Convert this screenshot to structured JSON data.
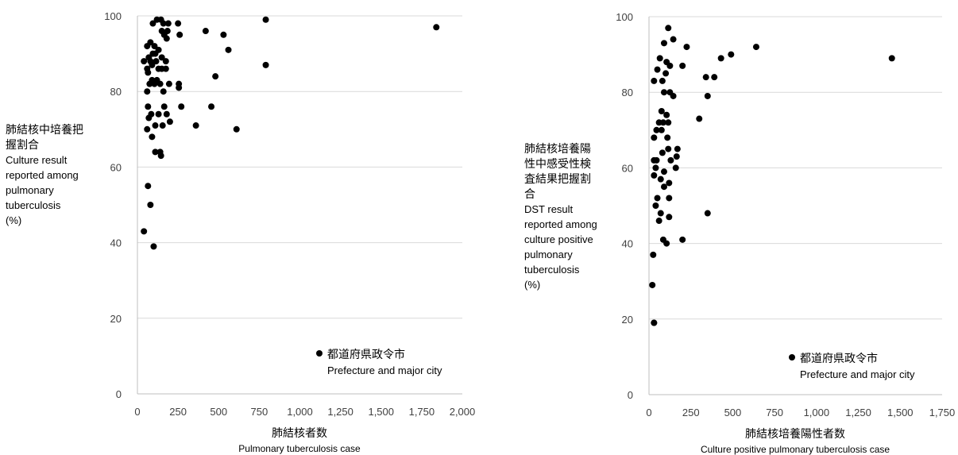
{
  "chart_data": [
    {
      "type": "scatter",
      "ylabel_lines": [
        "肺結核中培養把",
        "握割合",
        "Culture result",
        "reported among",
        "pulmonary",
        "tuberculosis",
        "(%)"
      ],
      "xlabel": "肺結核者数",
      "xlabel_en": "Pulmonary tuberculosis case",
      "legend": {
        "label": "都道府県政令市",
        "label_en": "Prefecture and major city",
        "position": "bottom-right"
      },
      "xlim": [
        0,
        2000
      ],
      "ylim": [
        0,
        100
      ],
      "xticks": [
        0,
        250,
        500,
        750,
        1000,
        1250,
        1500,
        1750,
        2000
      ],
      "xtick_labels": [
        "0",
        "250",
        "500",
        "750",
        "1,000",
        "1,250",
        "1,500",
        "1,750",
        "2,000"
      ],
      "yticks": [
        0,
        20,
        40,
        60,
        80,
        100
      ],
      "grid": "horizontal",
      "series": [
        {
          "points": [
            [
              120,
              99
            ],
            [
              145,
              99
            ],
            [
              790,
              99
            ],
            [
              95,
              98
            ],
            [
              160,
              98
            ],
            [
              190,
              98
            ],
            [
              250,
              98
            ],
            [
              1840,
              97
            ],
            [
              150,
              96
            ],
            [
              185,
              96
            ],
            [
              420,
              96
            ],
            [
              260,
              95
            ],
            [
              530,
              95
            ],
            [
              165,
              95
            ],
            [
              180,
              94
            ],
            [
              80,
              93
            ],
            [
              105,
              92
            ],
            [
              60,
              92
            ],
            [
              560,
              91
            ],
            [
              130,
              91
            ],
            [
              110,
              90
            ],
            [
              95,
              90
            ],
            [
              70,
              89
            ],
            [
              150,
              89
            ],
            [
              40,
              88
            ],
            [
              80,
              88
            ],
            [
              115,
              88
            ],
            [
              175,
              88
            ],
            [
              90,
              87
            ],
            [
              790,
              87
            ],
            [
              60,
              86
            ],
            [
              130,
              86
            ],
            [
              150,
              86
            ],
            [
              175,
              86
            ],
            [
              65,
              85
            ],
            [
              480,
              84
            ],
            [
              120,
              83
            ],
            [
              90,
              83
            ],
            [
              75,
              82
            ],
            [
              140,
              82
            ],
            [
              195,
              82
            ],
            [
              255,
              82
            ],
            [
              105,
              82
            ],
            [
              255,
              81
            ],
            [
              60,
              80
            ],
            [
              160,
              80
            ],
            [
              65,
              76
            ],
            [
              165,
              76
            ],
            [
              270,
              76
            ],
            [
              455,
              76
            ],
            [
              85,
              74
            ],
            [
              130,
              74
            ],
            [
              180,
              74
            ],
            [
              70,
              73
            ],
            [
              200,
              72
            ],
            [
              110,
              71
            ],
            [
              155,
              71
            ],
            [
              360,
              71
            ],
            [
              60,
              70
            ],
            [
              610,
              70
            ],
            [
              90,
              68
            ],
            [
              110,
              64
            ],
            [
              140,
              64
            ],
            [
              145,
              63
            ],
            [
              65,
              55
            ],
            [
              80,
              50
            ],
            [
              40,
              43
            ],
            [
              100,
              39
            ]
          ]
        }
      ]
    },
    {
      "type": "scatter",
      "ylabel_lines": [
        "肺結核培養陽",
        "性中感受性検",
        "査結果把握割",
        "合",
        "DST result",
        "reported among",
        "culture positive",
        "pulmonary",
        "tuberculosis",
        "(%)"
      ],
      "xlabel": "肺結核培養陽性者数",
      "xlabel_en": "Culture positive pulmonary tuberculosis case",
      "legend": {
        "label": "都道府県政令市",
        "label_en": "Prefecture and major city",
        "position": "bottom-right"
      },
      "xlim": [
        0,
        1750
      ],
      "ylim": [
        0,
        100
      ],
      "xticks": [
        0,
        250,
        500,
        750,
        1000,
        1250,
        1500,
        1750
      ],
      "xtick_labels": [
        "0",
        "250",
        "500",
        "750",
        "1,000",
        "1,250",
        "1,500",
        "1,750"
      ],
      "yticks": [
        0,
        20,
        40,
        60,
        80,
        100
      ],
      "grid": "horizontal",
      "series": [
        {
          "points": [
            [
              115,
              97
            ],
            [
              145,
              94
            ],
            [
              90,
              93
            ],
            [
              225,
              92
            ],
            [
              640,
              92
            ],
            [
              490,
              90
            ],
            [
              430,
              89
            ],
            [
              1450,
              89
            ],
            [
              65,
              89
            ],
            [
              105,
              88
            ],
            [
              200,
              87
            ],
            [
              125,
              87
            ],
            [
              340,
              84
            ],
            [
              390,
              84
            ],
            [
              50,
              86
            ],
            [
              100,
              85
            ],
            [
              30,
              83
            ],
            [
              80,
              83
            ],
            [
              90,
              80
            ],
            [
              125,
              80
            ],
            [
              145,
              79
            ],
            [
              350,
              79
            ],
            [
              75,
              75
            ],
            [
              105,
              74
            ],
            [
              60,
              72
            ],
            [
              85,
              72
            ],
            [
              115,
              72
            ],
            [
              300,
              73
            ],
            [
              45,
              70
            ],
            [
              75,
              70
            ],
            [
              110,
              68
            ],
            [
              30,
              68
            ],
            [
              115,
              65
            ],
            [
              170,
              65
            ],
            [
              80,
              64
            ],
            [
              165,
              63
            ],
            [
              130,
              62
            ],
            [
              45,
              62
            ],
            [
              30,
              62
            ],
            [
              40,
              60
            ],
            [
              160,
              60
            ],
            [
              90,
              59
            ],
            [
              30,
              58
            ],
            [
              70,
              57
            ],
            [
              120,
              56
            ],
            [
              90,
              55
            ],
            [
              50,
              52
            ],
            [
              120,
              52
            ],
            [
              40,
              50
            ],
            [
              70,
              48
            ],
            [
              120,
              47
            ],
            [
              350,
              48
            ],
            [
              60,
              46
            ],
            [
              200,
              41
            ],
            [
              85,
              41
            ],
            [
              105,
              40
            ],
            [
              25,
              37
            ],
            [
              20,
              29
            ],
            [
              30,
              19
            ],
            [
              30,
              19
            ]
          ]
        }
      ]
    }
  ]
}
